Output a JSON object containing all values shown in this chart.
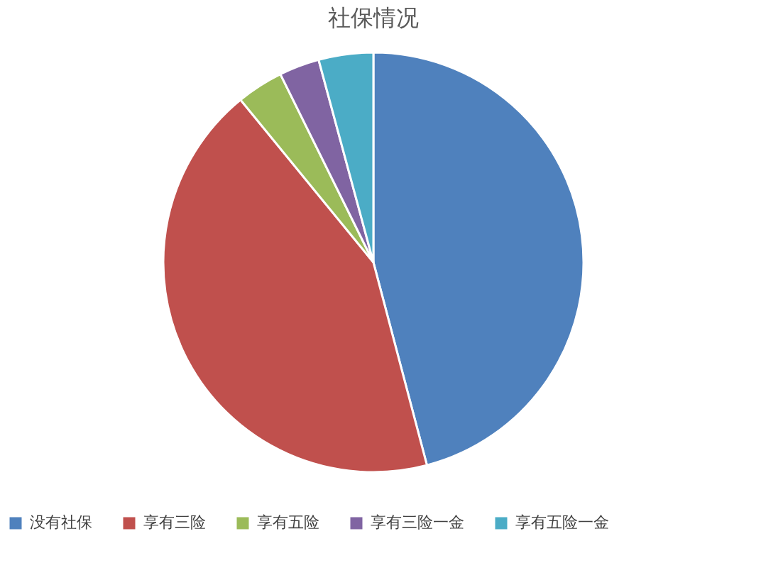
{
  "chart_data": {
    "type": "pie",
    "title": "社保情况",
    "categories": [
      "没有社保",
      "享有三险",
      "享有五险",
      "享有三险一金",
      "享有五险一金"
    ],
    "values": [
      45.9,
      43.2,
      3.6,
      3.1,
      4.2
    ],
    "colors": [
      "#4f81bd",
      "#c0504d",
      "#9bbb59",
      "#8064a2",
      "#4bacc6"
    ],
    "legend": "bottom"
  }
}
